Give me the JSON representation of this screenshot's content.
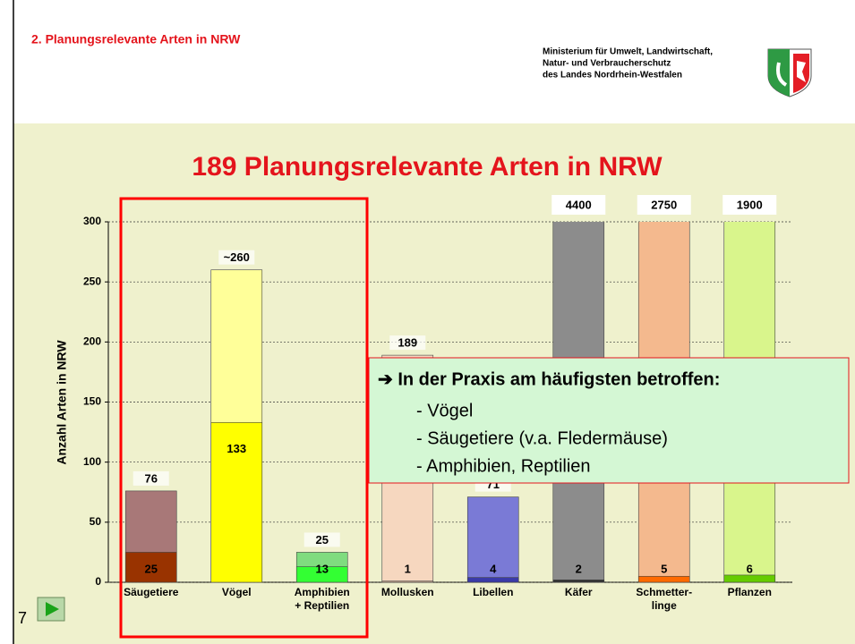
{
  "header": {
    "section_title": "2. Planungsrelevante Arten in NRW",
    "ministry": [
      "Ministerium für Umwelt, Landwirtschaft,",
      "Natur- und Verbraucherschutz",
      "des Landes Nordrhein-Westfalen"
    ]
  },
  "slide_number": "7",
  "callout": {
    "heading": "➔ In der Praxis am häufigsten betroffen:",
    "items": [
      "- Vögel",
      "- Säugetiere (v.a. Fledermäuse)",
      "- Amphibien, Reptilien"
    ]
  },
  "chart_data": {
    "type": "bar",
    "title": "189 Planungsrelevante Arten in NRW",
    "y_label": "Anzahl Arten in NRW",
    "categories": [
      "Säugetiere",
      "Vögel",
      "Amphibien\n+ Reptilien",
      "Mollusken",
      "Libellen",
      "Käfer",
      "Schmetter-\nlinge",
      "Pflanzen"
    ],
    "series": [
      {
        "colors": [
          "#a87878",
          "#ffff99",
          "#7fdc7f",
          "#f6d7bf",
          "#7a7ad6",
          "#8c8c8c",
          "#f4b98e",
          "#d9f58c"
        ],
        "values": [
          76,
          260,
          25,
          189,
          71,
          4400,
          2750,
          1900
        ],
        "value_labels": [
          "76",
          "~260",
          "25",
          "189",
          "71",
          "4400",
          "2750",
          "1900"
        ]
      },
      {
        "colors": [
          "#993300",
          "#ffff00",
          "#33ff33",
          "#c8a890",
          "#3a3aa8",
          "#333333",
          "#ff6a00",
          "#66cc00"
        ],
        "values": [
          25,
          133,
          13,
          1,
          4,
          2,
          5,
          6
        ]
      }
    ],
    "ylim": [
      0,
      300
    ],
    "yticks": [
      0,
      50,
      100,
      150,
      200,
      250,
      300
    ],
    "grid": true
  }
}
